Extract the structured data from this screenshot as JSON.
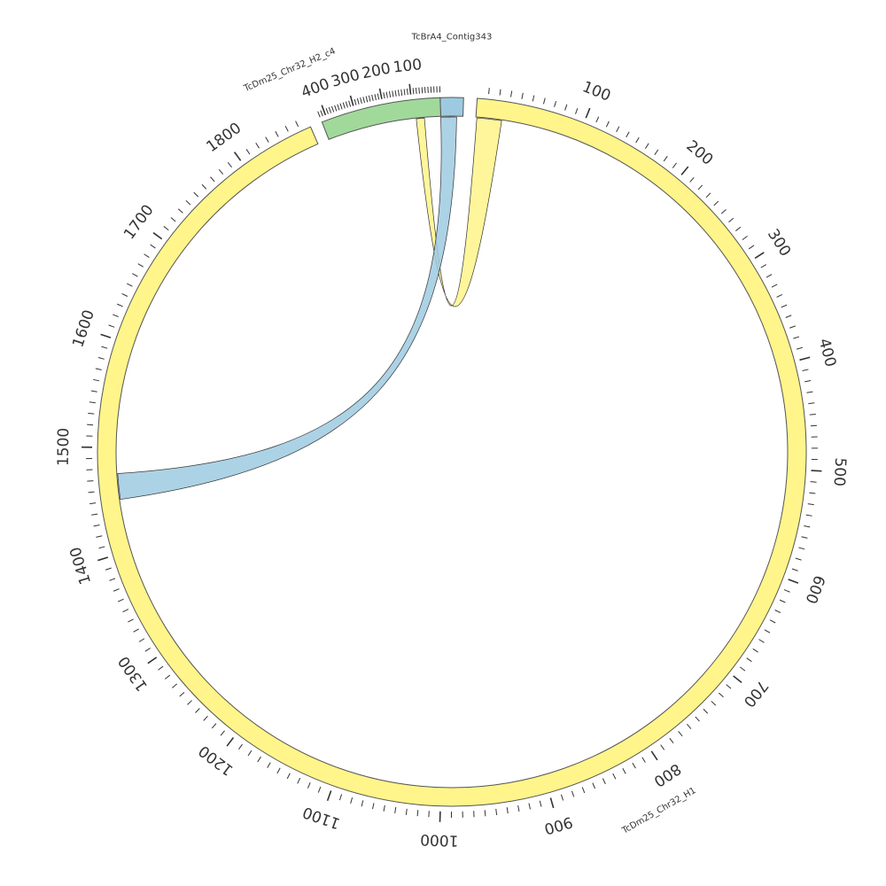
{
  "diagram": {
    "type": "circos",
    "sequences": [
      {
        "id": "contig343",
        "name": "TcBrA4_Contig343",
        "color": "#9ecae1",
        "ticks": []
      },
      {
        "id": "h1",
        "name": "TcDm25_Chr32_H1",
        "color": "#fff58a",
        "ticks": [
          "100",
          "200",
          "300",
          "400",
          "500",
          "600",
          "700",
          "800",
          "900",
          "1000",
          "1100",
          "1200",
          "1300",
          "1400",
          "1500",
          "1600",
          "1700",
          "1800"
        ]
      },
      {
        "id": "h2",
        "name": "TcDm25_Chr32_H2_c4",
        "color": "#a1d99b",
        "ticks": [
          "100",
          "200",
          "300",
          "400"
        ]
      }
    ],
    "links": [
      {
        "from": "h1",
        "from_start": 1,
        "from_end": 25,
        "to": "h2",
        "to_start": 60,
        "to_end": 90,
        "color": "#fff58a"
      },
      {
        "from": "contig343",
        "from_start": 0,
        "from_end": 20,
        "to": "h1",
        "to_start": 1450,
        "to_end": 1475,
        "color": "#9ecae1"
      }
    ]
  }
}
